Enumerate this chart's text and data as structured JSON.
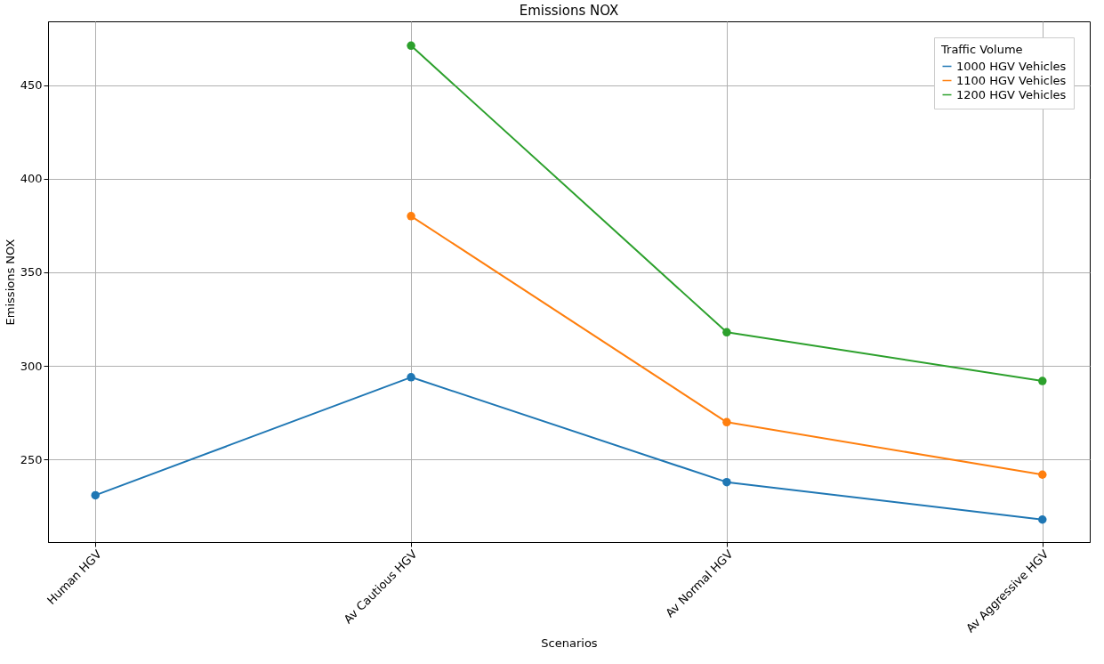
{
  "chart_data": {
    "type": "line",
    "title": "Emissions NOX",
    "xlabel": "Scenarios",
    "ylabel": "Emissions NOX",
    "legend_title": "Traffic Volume",
    "categories": [
      "Human HGV",
      "Av Cautious HGV",
      "Av Normal HGV",
      "Av Aggressive HGV"
    ],
    "series": [
      {
        "name": "1000 HGV Vehicles",
        "color": "#1f77b4",
        "values": [
          231,
          294,
          238,
          218
        ]
      },
      {
        "name": "1100 HGV Vehicles",
        "color": "#ff7f0e",
        "values": [
          null,
          380,
          270,
          242
        ]
      },
      {
        "name": "1200 HGV Vehicles",
        "color": "#2ca02c",
        "values": [
          null,
          471,
          318,
          292
        ]
      }
    ],
    "ylim": [
      206,
      484
    ],
    "yticks": [
      250,
      300,
      350,
      400,
      450
    ],
    "grid": true,
    "legend": "top right",
    "marker": "circle",
    "line_style": "solid"
  }
}
